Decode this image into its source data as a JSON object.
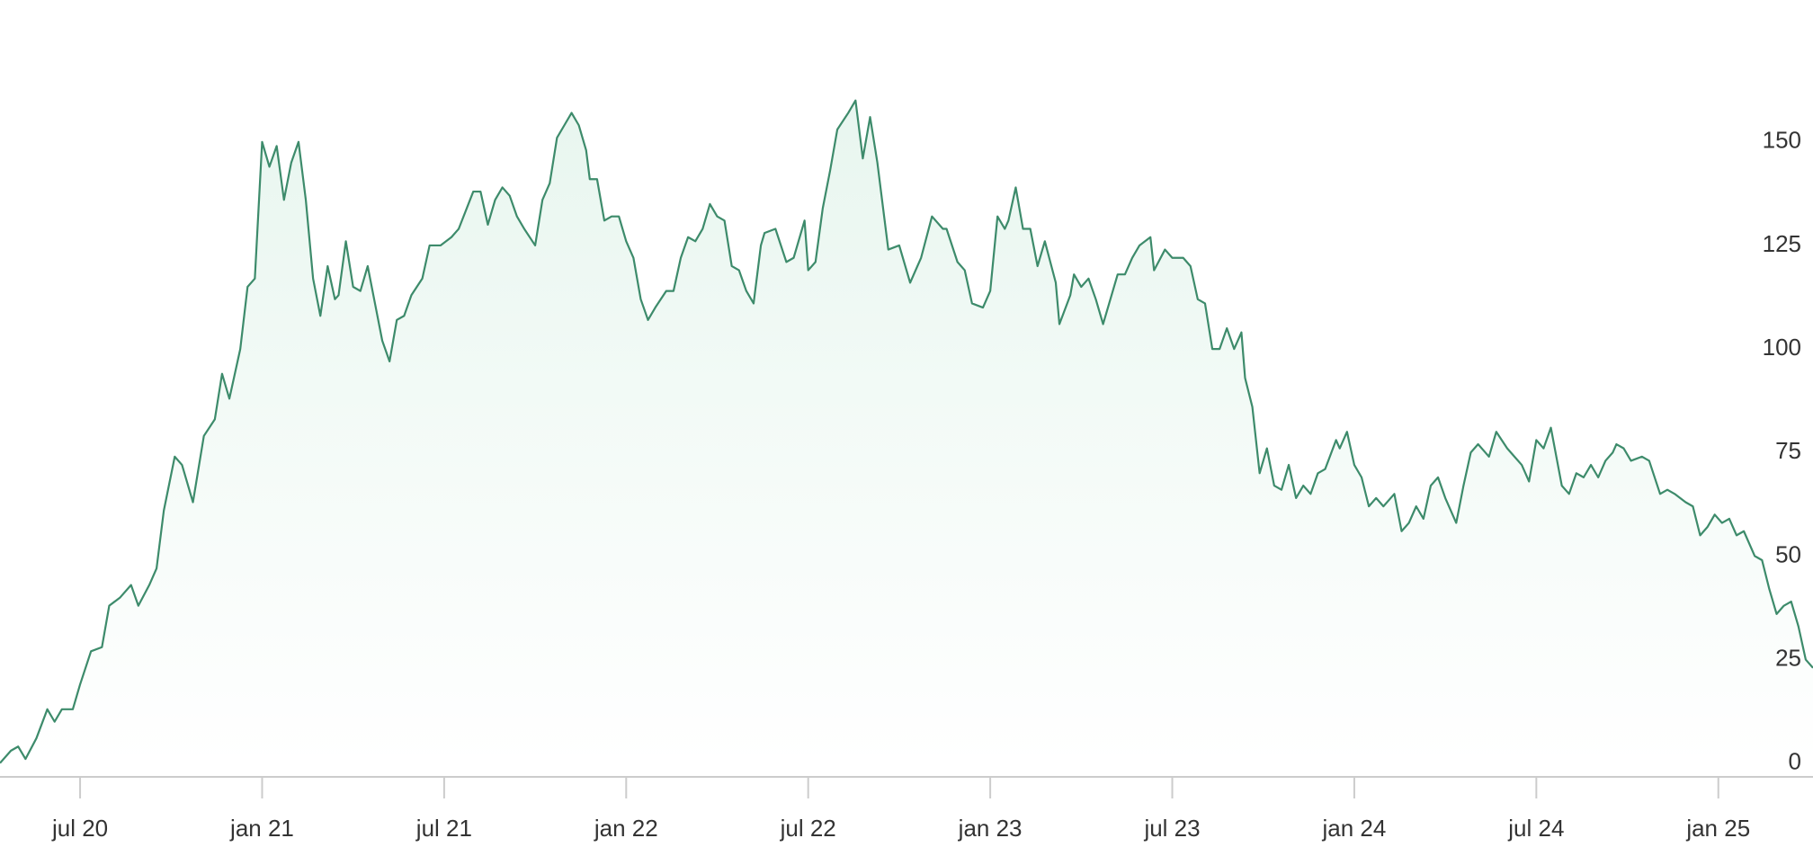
{
  "chart_data": {
    "type": "area",
    "color": "#3d8b6b",
    "fill_color": "#e8f6ef",
    "x": [
      2020.28,
      2020.31,
      2020.33,
      2020.35,
      2020.38,
      2020.41,
      2020.43,
      2020.45,
      2020.48,
      2020.5,
      2020.53,
      2020.56,
      2020.58,
      2020.61,
      2020.64,
      2020.66,
      2020.69,
      2020.71,
      2020.73,
      2020.76,
      2020.78,
      2020.81,
      2020.84,
      2020.87,
      2020.89,
      2020.91,
      2020.94,
      2020.96,
      2020.98,
      2021.0,
      2021.02,
      2021.04,
      2021.06,
      2021.08,
      2021.1,
      2021.12,
      2021.14,
      2021.16,
      2021.18,
      2021.2,
      2021.21,
      2021.23,
      2021.25,
      2021.27,
      2021.29,
      2021.31,
      2021.33,
      2021.35,
      2021.37,
      2021.39,
      2021.41,
      2021.44,
      2021.46,
      2021.49,
      2021.52,
      2021.54,
      2021.58,
      2021.6,
      2021.62,
      2021.64,
      2021.66,
      2021.68,
      2021.7,
      2021.72,
      2021.75,
      2021.77,
      2021.79,
      2021.81,
      2021.83,
      2021.85,
      2021.87,
      2021.89,
      2021.9,
      2021.92,
      2021.94,
      2021.96,
      2021.98,
      2022.0,
      2022.02,
      2022.04,
      2022.06,
      2022.08,
      2022.11,
      2022.13,
      2022.15,
      2022.17,
      2022.19,
      2022.21,
      2022.23,
      2022.25,
      2022.27,
      2022.29,
      2022.31,
      2022.33,
      2022.35,
      2022.37,
      2022.38,
      2022.41,
      2022.44,
      2022.46,
      2022.49,
      2022.5,
      2022.52,
      2022.54,
      2022.56,
      2022.58,
      2022.61,
      2022.63,
      2022.65,
      2022.67,
      2022.69,
      2022.71,
      2022.72,
      2022.75,
      2022.78,
      2022.81,
      2022.84,
      2022.87,
      2022.88,
      2022.91,
      2022.93,
      2022.95,
      2022.98,
      2023.0,
      2023.02,
      2023.04,
      2023.05,
      2023.07,
      2023.09,
      2023.11,
      2023.13,
      2023.15,
      2023.18,
      2023.19,
      2023.22,
      2023.23,
      2023.25,
      2023.27,
      2023.29,
      2023.31,
      2023.33,
      2023.35,
      2023.37,
      2023.39,
      2023.41,
      2023.44,
      2023.45,
      2023.48,
      2023.5,
      2023.53,
      2023.55,
      2023.57,
      2023.59,
      2023.61,
      2023.63,
      2023.65,
      2023.67,
      2023.69,
      2023.7,
      2023.72,
      2023.74,
      2023.76,
      2023.78,
      2023.8,
      2023.82,
      2023.84,
      2023.86,
      2023.88,
      2023.9,
      2023.92,
      2023.95,
      2023.96,
      2023.98,
      2024.0,
      2024.02,
      2024.04,
      2024.06,
      2024.08,
      2024.11,
      2024.13,
      2024.15,
      2024.17,
      2024.19,
      2024.21,
      2024.23,
      2024.25,
      2024.28,
      2024.3,
      2024.32,
      2024.34,
      2024.37,
      2024.39,
      2024.42,
      2024.44,
      2024.46,
      2024.48,
      2024.5,
      2024.52,
      2024.54,
      2024.57,
      2024.59,
      2024.61,
      2024.63,
      2024.65,
      2024.67,
      2024.69,
      2024.71,
      2024.72,
      2024.74,
      2024.76,
      2024.79,
      2024.81,
      2024.84,
      2024.86,
      2024.88,
      2024.91,
      2024.93,
      2024.95,
      2024.97,
      2024.99,
      2025.01,
      2025.03,
      2025.05,
      2025.07,
      2025.1,
      2025.12,
      2025.14,
      2025.16,
      2025.18,
      2025.2,
      2025.22,
      2025.24,
      2025.26
    ],
    "values": [
      0,
      3,
      4,
      1,
      6,
      13,
      10,
      13,
      13,
      19,
      27,
      28,
      38,
      40,
      43,
      38,
      43,
      47,
      61,
      74,
      72,
      63,
      79,
      83,
      94,
      88,
      100,
      115,
      117,
      150,
      144,
      149,
      136,
      145,
      150,
      136,
      117,
      108,
      120,
      112,
      113,
      126,
      115,
      114,
      120,
      111,
      102,
      97,
      107,
      108,
      113,
      117,
      125,
      125,
      127,
      129,
      138,
      138,
      130,
      136,
      139,
      137,
      132,
      129,
      125,
      136,
      140,
      151,
      154,
      157,
      154,
      148,
      141,
      141,
      131,
      132,
      132,
      126,
      122,
      112,
      107,
      110,
      114,
      114,
      122,
      127,
      126,
      129,
      135,
      132,
      131,
      120,
      119,
      114,
      111,
      125,
      128,
      129,
      121,
      122,
      131,
      119,
      121,
      134,
      143,
      153,
      157,
      160,
      146,
      156,
      145,
      131,
      124,
      125,
      116,
      122,
      132,
      129,
      129,
      121,
      119,
      111,
      110,
      114,
      132,
      129,
      131,
      139,
      129,
      129,
      120,
      126,
      116,
      106,
      113,
      118,
      115,
      117,
      112,
      106,
      112,
      118,
      118,
      122,
      125,
      127,
      119,
      124,
      122,
      122,
      120,
      112,
      111,
      100,
      100,
      105,
      100,
      104,
      93,
      86,
      70,
      76,
      67,
      66,
      72,
      64,
      67,
      65,
      70,
      71,
      78,
      76,
      80,
      72,
      69,
      62,
      64,
      62,
      65,
      56,
      58,
      62,
      59,
      67,
      69,
      64,
      58,
      67,
      75,
      77,
      74,
      80,
      76,
      74,
      72,
      68,
      78,
      76,
      81,
      67,
      65,
      70,
      69,
      72,
      69,
      73,
      75,
      77,
      76,
      73,
      74,
      73,
      65,
      66,
      65,
      63,
      62,
      55,
      57,
      60,
      58,
      59,
      55,
      56,
      50,
      49,
      42,
      36,
      38,
      39,
      33,
      25,
      23
    ],
    "xlim": [
      2020.28,
      2025.26
    ],
    "xticks": [
      {
        "value": 2020.5,
        "label": "jul 20"
      },
      {
        "value": 2021.0,
        "label": "jan 21"
      },
      {
        "value": 2021.5,
        "label": "jul 21"
      },
      {
        "value": 2022.0,
        "label": "jan 22"
      },
      {
        "value": 2022.5,
        "label": "jul 22"
      },
      {
        "value": 2023.0,
        "label": "jan 23"
      },
      {
        "value": 2023.5,
        "label": "jul 23"
      },
      {
        "value": 2024.0,
        "label": "jan 24"
      },
      {
        "value": 2024.5,
        "label": "jul 24"
      },
      {
        "value": 2025.0,
        "label": "jan 25"
      }
    ],
    "ylim": [
      -3,
      184
    ],
    "yticks": [
      0,
      25,
      50,
      75,
      100,
      125,
      150
    ]
  }
}
